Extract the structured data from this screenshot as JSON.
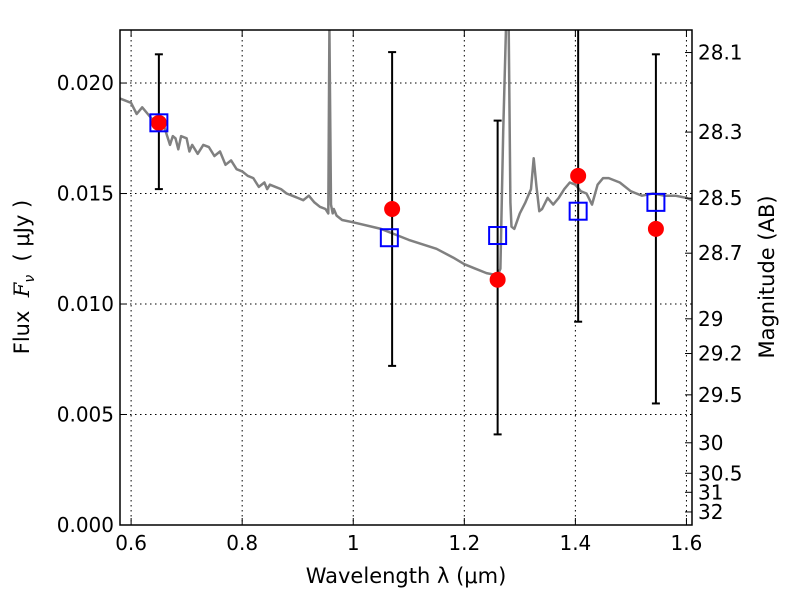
{
  "chart_data": {
    "type": "scatter",
    "xlabel": "Wavelength  λ (μm)",
    "ylabel_prefix": "Flux  ",
    "ylabel_var": "F",
    "ylabel_sub": "ν",
    "ylabel_suffix": "  ( μJy )",
    "y2label": "Magnitude (AB)",
    "xlim": [
      0.58,
      1.61
    ],
    "ylim": [
      0.0,
      0.0224
    ],
    "grid": true,
    "x_ticks": [
      0.6,
      0.8,
      1.0,
      1.2,
      1.4,
      1.6
    ],
    "x_tick_labels": [
      "0.6",
      "0.8",
      "1",
      "1.2",
      "1.4",
      "1.6"
    ],
    "y_ticks": [
      0.0,
      0.005,
      0.01,
      0.015,
      0.02
    ],
    "y_tick_labels": [
      "0.000",
      "0.005",
      "0.010",
      "0.015",
      "0.020"
    ],
    "y2_ticks": [
      {
        "label": "28.1",
        "flux": 0.02138
      },
      {
        "label": "28.3",
        "flux": 0.01778
      },
      {
        "label": "28.5",
        "flux": 0.01479
      },
      {
        "label": "28.7",
        "flux": 0.0123
      },
      {
        "label": "29",
        "flux": 0.00933
      },
      {
        "label": "29.2",
        "flux": 0.00776
      },
      {
        "label": "29.5",
        "flux": 0.00589
      },
      {
        "label": "30",
        "flux": 0.00372
      },
      {
        "label": "30.5",
        "flux": 0.00234
      },
      {
        "label": "31",
        "flux": 0.00148
      },
      {
        "label": "32",
        "flux": 0.00059
      }
    ],
    "model_spectrum": {
      "x": [
        0.58,
        0.59,
        0.6,
        0.61,
        0.62,
        0.63,
        0.64,
        0.65,
        0.66,
        0.665,
        0.67,
        0.675,
        0.68,
        0.685,
        0.69,
        0.7,
        0.705,
        0.71,
        0.72,
        0.73,
        0.74,
        0.75,
        0.76,
        0.77,
        0.78,
        0.79,
        0.8,
        0.81,
        0.82,
        0.83,
        0.84,
        0.845,
        0.85,
        0.86,
        0.87,
        0.88,
        0.89,
        0.9,
        0.91,
        0.92,
        0.93,
        0.94,
        0.95,
        0.955,
        0.957,
        0.96,
        0.963,
        0.965,
        0.97,
        0.98,
        1.0,
        1.05,
        1.1,
        1.15,
        1.18,
        1.2,
        1.22,
        1.24,
        1.26,
        1.265,
        1.27,
        1.275,
        1.278,
        1.28,
        1.283,
        1.285,
        1.29,
        1.3,
        1.31,
        1.32,
        1.325,
        1.33,
        1.335,
        1.34,
        1.35,
        1.36,
        1.37,
        1.38,
        1.39,
        1.4,
        1.41,
        1.42,
        1.43,
        1.44,
        1.45,
        1.46,
        1.48,
        1.5,
        1.52,
        1.54,
        1.56,
        1.58,
        1.6,
        1.61
      ],
      "y": [
        0.0193,
        0.0192,
        0.0191,
        0.0186,
        0.0189,
        0.0186,
        0.0183,
        0.0181,
        0.018,
        0.0176,
        0.0172,
        0.0176,
        0.0175,
        0.017,
        0.0176,
        0.0175,
        0.0169,
        0.0172,
        0.0168,
        0.0172,
        0.0171,
        0.0167,
        0.0169,
        0.0163,
        0.0165,
        0.0161,
        0.016,
        0.0158,
        0.0157,
        0.0153,
        0.0155,
        0.0152,
        0.0154,
        0.0153,
        0.0152,
        0.015,
        0.0149,
        0.0148,
        0.0147,
        0.0149,
        0.0146,
        0.0144,
        0.0143,
        0.0141,
        0.0225,
        0.0145,
        0.0141,
        0.0143,
        0.014,
        0.0138,
        0.0137,
        0.0134,
        0.0129,
        0.0125,
        0.0121,
        0.0118,
        0.0116,
        0.0114,
        0.0113,
        0.0116,
        0.0178,
        0.0225,
        0.0225,
        0.0225,
        0.0146,
        0.0135,
        0.0134,
        0.0141,
        0.0146,
        0.0152,
        0.0166,
        0.0153,
        0.0142,
        0.0143,
        0.0148,
        0.0145,
        0.0148,
        0.0152,
        0.0155,
        0.0154,
        0.0151,
        0.015,
        0.0145,
        0.0154,
        0.0157,
        0.0157,
        0.0155,
        0.0151,
        0.0149,
        0.015,
        0.0149,
        0.0149,
        0.0148,
        0.0147
      ]
    },
    "model_points": {
      "x": [
        0.65,
        1.065,
        1.26,
        1.405,
        1.545
      ],
      "y": [
        0.0182,
        0.013,
        0.0131,
        0.0142,
        0.0146
      ]
    },
    "observed_points": {
      "x": [
        0.65,
        1.07,
        1.26,
        1.405,
        1.545
      ],
      "y": [
        0.0182,
        0.0143,
        0.0111,
        0.0158,
        0.0134
      ],
      "err_low": [
        0.0152,
        0.0072,
        0.0041,
        0.0092,
        0.0055
      ],
      "err_high": [
        0.0213,
        0.0214,
        0.0183,
        0.0232,
        0.0213
      ]
    },
    "colors": {
      "spectrum": "#808080",
      "observed": "#ff0000",
      "model": "#0000ff",
      "errorbar": "#000000"
    }
  }
}
